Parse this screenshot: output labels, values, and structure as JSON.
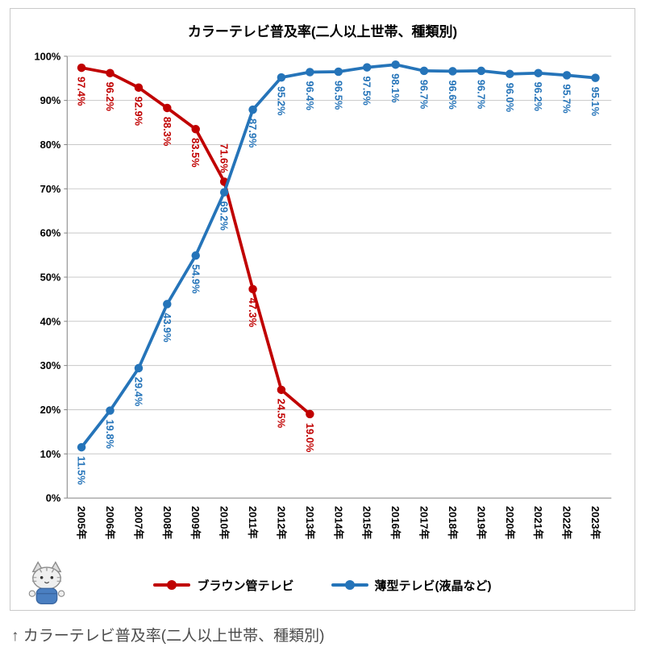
{
  "page": {
    "caption": "↑ カラーテレビ普及率(二人以上世帯、種類別)"
  },
  "icons": {
    "mascot": "cat-mascot-icon"
  },
  "chart_data": {
    "type": "line",
    "title": "カラーテレビ普及率(二人以上世帯、種類別)",
    "x_labels": [
      "2005年",
      "2006年",
      "2007年",
      "2008年",
      "2009年",
      "2010年",
      "2011年",
      "2012年",
      "2013年",
      "2014年",
      "2015年",
      "2016年",
      "2017年",
      "2018年",
      "2019年",
      "2020年",
      "2021年",
      "2022年",
      "2023年"
    ],
    "y_ticks": [
      "0%",
      "10%",
      "20%",
      "30%",
      "40%",
      "50%",
      "60%",
      "70%",
      "80%",
      "90%",
      "100%"
    ],
    "ylim": [
      0,
      100
    ],
    "grid": true,
    "legend_position": "bottom",
    "series": [
      {
        "name": "ブラウン管テレビ",
        "color": "#c00000",
        "values": [
          97.4,
          96.2,
          92.9,
          88.3,
          83.5,
          71.6,
          47.3,
          24.5,
          19.0
        ]
      },
      {
        "name": "薄型テレビ(液晶など)",
        "color": "#2574b9",
        "values": [
          11.5,
          19.8,
          29.4,
          43.9,
          54.9,
          69.2,
          87.9,
          95.2,
          96.4,
          96.5,
          97.5,
          98.1,
          96.7,
          96.6,
          96.7,
          96.0,
          96.2,
          95.7,
          95.1
        ]
      }
    ]
  }
}
